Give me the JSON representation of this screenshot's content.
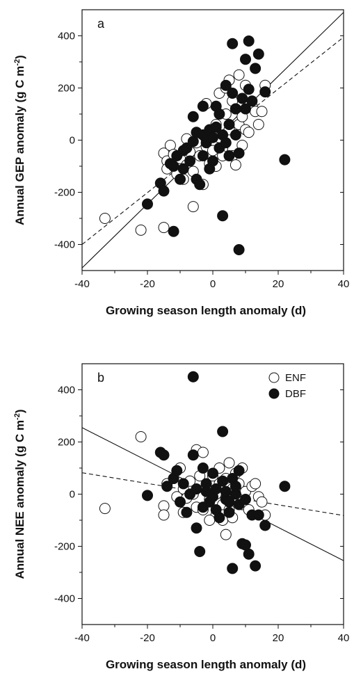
{
  "chart_data": [
    {
      "type": "scatter",
      "panel_label": "a",
      "xlabel": "Growing season length anomaly (d)",
      "ylabel": "Annual GEP anomaly (g C m-2)",
      "ylabel_main": "Annual GEP anomaly (g C m",
      "ylabel_sup": "-2",
      "ylabel_end": ")",
      "xlim": [
        -40,
        40
      ],
      "ylim": [
        -500,
        500
      ],
      "xticks": [
        "-40",
        "-20",
        "0",
        "20",
        "40"
      ],
      "yticks": [
        "-400",
        "-200",
        "0",
        "200",
        "400"
      ],
      "xtick_values": [
        -40,
        -20,
        0,
        20,
        40
      ],
      "ytick_values": [
        -400,
        -200,
        0,
        200,
        400
      ],
      "series": [
        {
          "name": "ENF",
          "style": "open",
          "points": [
            [
              -33,
              -300
            ],
            [
              -22,
              -345
            ],
            [
              -15,
              -335
            ],
            [
              -6,
              -255
            ],
            [
              -15,
              -50
            ],
            [
              -14,
              -80
            ],
            [
              -14,
              -110
            ],
            [
              -13,
              -20
            ],
            [
              -12,
              -55
            ],
            [
              -11,
              -130
            ],
            [
              -10,
              -70
            ],
            [
              -9,
              -150
            ],
            [
              -8,
              5
            ],
            [
              -8,
              -95
            ],
            [
              -7,
              -45
            ],
            [
              -6,
              -120
            ],
            [
              -5,
              -10
            ],
            [
              -4,
              -60
            ],
            [
              -3,
              -170
            ],
            [
              -2,
              -25
            ],
            [
              -1,
              -90
            ],
            [
              0,
              -40
            ],
            [
              0,
              20
            ],
            [
              1,
              -100
            ],
            [
              1,
              60
            ],
            [
              2,
              10
            ],
            [
              2,
              180
            ],
            [
              3,
              -30
            ],
            [
              4,
              200
            ],
            [
              4,
              100
            ],
            [
              5,
              230
            ],
            [
              5,
              40
            ],
            [
              6,
              150
            ],
            [
              6,
              -60
            ],
            [
              7,
              -95
            ],
            [
              7,
              120
            ],
            [
              8,
              60
            ],
            [
              8,
              250
            ],
            [
              9,
              -20
            ],
            [
              9,
              90
            ],
            [
              10,
              210
            ],
            [
              10,
              40
            ],
            [
              11,
              30
            ],
            [
              12,
              130
            ],
            [
              13,
              110
            ],
            [
              14,
              60
            ],
            [
              15,
              110
            ],
            [
              16,
              210
            ],
            [
              3,
              -60
            ],
            [
              -2,
              140
            ]
          ]
        },
        {
          "name": "DBF",
          "style": "filled",
          "points": [
            [
              -20,
              -245
            ],
            [
              -12,
              -350
            ],
            [
              -16,
              -165
            ],
            [
              -15,
              -195
            ],
            [
              -13,
              -90
            ],
            [
              -12,
              -100
            ],
            [
              -11,
              -60
            ],
            [
              -10,
              -150
            ],
            [
              -9,
              -40
            ],
            [
              -9,
              -110
            ],
            [
              -8,
              -30
            ],
            [
              -7,
              -80
            ],
            [
              -6,
              90
            ],
            [
              -6,
              -5
            ],
            [
              -5,
              -150
            ],
            [
              -5,
              30
            ],
            [
              -4,
              -170
            ],
            [
              -3,
              130
            ],
            [
              -3,
              20
            ],
            [
              -3,
              -60
            ],
            [
              -2,
              -10
            ],
            [
              -1,
              40
            ],
            [
              -1,
              -110
            ],
            [
              0,
              10
            ],
            [
              0,
              -80
            ],
            [
              1,
              130
            ],
            [
              1,
              50
            ],
            [
              2,
              -30
            ],
            [
              2,
              100
            ],
            [
              3,
              -290
            ],
            [
              3,
              20
            ],
            [
              4,
              210
            ],
            [
              4,
              -10
            ],
            [
              5,
              60
            ],
            [
              5,
              -60
            ],
            [
              6,
              370
            ],
            [
              6,
              180
            ],
            [
              7,
              120
            ],
            [
              7,
              20
            ],
            [
              8,
              -420
            ],
            [
              8,
              -50
            ],
            [
              9,
              160
            ],
            [
              10,
              310
            ],
            [
              10,
              120
            ],
            [
              11,
              380
            ],
            [
              11,
              195
            ],
            [
              12,
              150
            ],
            [
              13,
              275
            ],
            [
              14,
              330
            ],
            [
              16,
              185
            ],
            [
              22,
              -75
            ]
          ]
        }
      ],
      "lines": [
        {
          "name": "solid",
          "style": "solid",
          "x": [
            -40,
            40
          ],
          "y": [
            -490,
            490
          ]
        },
        {
          "name": "dashed",
          "style": "dashed",
          "x": [
            -40,
            40
          ],
          "y": [
            -400,
            395
          ]
        }
      ]
    },
    {
      "type": "scatter",
      "panel_label": "b",
      "xlabel": "Growing season length anomaly (d)",
      "ylabel": "Annual NEE anomaly (g C m-2)",
      "ylabel_main": "Annual NEE anomaly (g C m",
      "ylabel_sup": "-2",
      "ylabel_end": ")",
      "xlim": [
        -40,
        40
      ],
      "ylim": [
        -500,
        500
      ],
      "xticks": [
        "-40",
        "-20",
        "0",
        "20",
        "40"
      ],
      "yticks": [
        "-400",
        "-200",
        "0",
        "200",
        "400"
      ],
      "xtick_values": [
        -40,
        -20,
        0,
        20,
        40
      ],
      "ytick_values": [
        -400,
        -200,
        0,
        200,
        400
      ],
      "legend": [
        "ENF",
        "DBF"
      ],
      "legend_position": "top-right",
      "series": [
        {
          "name": "ENF",
          "style": "open",
          "points": [
            [
              -33,
              -55
            ],
            [
              -22,
              220
            ],
            [
              -15,
              -45
            ],
            [
              -15,
              -80
            ],
            [
              -14,
              40
            ],
            [
              -12,
              60
            ],
            [
              -11,
              -10
            ],
            [
              -10,
              100
            ],
            [
              -9,
              -70
            ],
            [
              -9,
              20
            ],
            [
              -8,
              -15
            ],
            [
              -7,
              50
            ],
            [
              -6,
              0
            ],
            [
              -5,
              -50
            ],
            [
              -5,
              170
            ],
            [
              -4,
              70
            ],
            [
              -3,
              -60
            ],
            [
              -3,
              160
            ],
            [
              -2,
              30
            ],
            [
              -1,
              -20
            ],
            [
              0,
              70
            ],
            [
              1,
              0
            ],
            [
              1,
              -80
            ],
            [
              2,
              40
            ],
            [
              2,
              100
            ],
            [
              3,
              -40
            ],
            [
              3,
              -100
            ],
            [
              4,
              60
            ],
            [
              5,
              -60
            ],
            [
              5,
              120
            ],
            [
              6,
              20
            ],
            [
              6,
              -90
            ],
            [
              7,
              80
            ],
            [
              7,
              -10
            ],
            [
              8,
              40
            ],
            [
              9,
              100
            ],
            [
              9,
              -40
            ],
            [
              10,
              10
            ],
            [
              11,
              -60
            ],
            [
              12,
              30
            ],
            [
              13,
              40
            ],
            [
              14,
              -10
            ],
            [
              15,
              -30
            ],
            [
              16,
              -80
            ],
            [
              4,
              -155
            ],
            [
              -1,
              -100
            ]
          ]
        },
        {
          "name": "DBF",
          "style": "filled",
          "points": [
            [
              -20,
              -5
            ],
            [
              -16,
              160
            ],
            [
              -15,
              150
            ],
            [
              -14,
              30
            ],
            [
              -12,
              60
            ],
            [
              -11,
              90
            ],
            [
              -10,
              -30
            ],
            [
              -9,
              40
            ],
            [
              -8,
              -70
            ],
            [
              -7,
              0
            ],
            [
              -6,
              150
            ],
            [
              -6,
              450
            ],
            [
              -5,
              -130
            ],
            [
              -5,
              20
            ],
            [
              -4,
              -220
            ],
            [
              -3,
              100
            ],
            [
              -3,
              -50
            ],
            [
              -2,
              40
            ],
            [
              -2,
              10
            ],
            [
              -1,
              -30
            ],
            [
              0,
              80
            ],
            [
              0,
              -10
            ],
            [
              1,
              -60
            ],
            [
              1,
              20
            ],
            [
              2,
              -90
            ],
            [
              3,
              240
            ],
            [
              3,
              50
            ],
            [
              4,
              -20
            ],
            [
              4,
              10
            ],
            [
              5,
              -70
            ],
            [
              5,
              -30
            ],
            [
              6,
              -285
            ],
            [
              6,
              60
            ],
            [
              7,
              0
            ],
            [
              7,
              30
            ],
            [
              8,
              -40
            ],
            [
              8,
              90
            ],
            [
              9,
              -190
            ],
            [
              10,
              -20
            ],
            [
              10,
              -195
            ],
            [
              11,
              -230
            ],
            [
              12,
              -80
            ],
            [
              13,
              -275
            ],
            [
              14,
              -80
            ],
            [
              16,
              -120
            ],
            [
              22,
              30
            ]
          ]
        }
      ],
      "lines": [
        {
          "name": "solid",
          "style": "solid",
          "x": [
            -40,
            40
          ],
          "y": [
            255,
            -255
          ]
        },
        {
          "name": "dashed",
          "style": "dashed",
          "x": [
            -40,
            40
          ],
          "y": [
            82,
            -82
          ]
        }
      ]
    }
  ]
}
